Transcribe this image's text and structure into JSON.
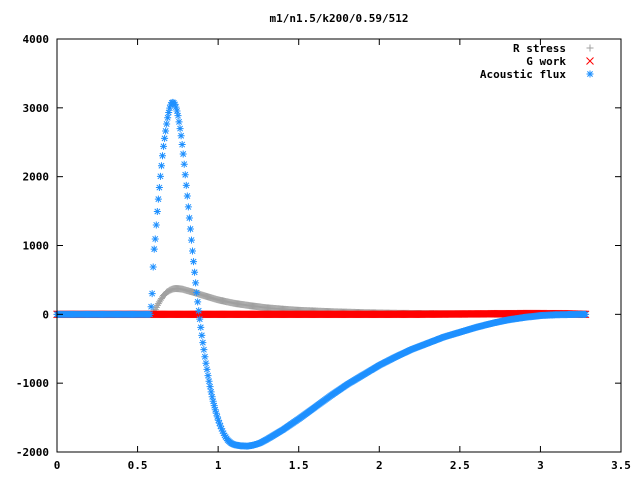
{
  "chart_data": {
    "type": "scatter",
    "title": "m1/n1.5/k200/0.59/512",
    "xlabel": "",
    "ylabel": "",
    "xlim": [
      0,
      3.5
    ],
    "ylim": [
      -2000,
      4000
    ],
    "xticks": [
      0,
      0.5,
      1,
      1.5,
      2,
      2.5,
      3,
      3.5
    ],
    "xtick_labels": [
      "0",
      "0.5",
      "1",
      "1.5",
      "2",
      "2.5",
      "3",
      "3.5"
    ],
    "yticks": [
      -2000,
      -1000,
      0,
      1000,
      2000,
      3000,
      4000
    ],
    "ytick_labels": [
      "-2000",
      "-1000",
      "0",
      "1000",
      "2000",
      "3000",
      "4000"
    ],
    "grid": false,
    "legend_position": "top-right",
    "x_range_points": [
      0,
      3.28
    ],
    "series": [
      {
        "name": "R stress",
        "color": "#a0a0a0",
        "marker": "plus",
        "points": [
          [
            0.0,
            0
          ],
          [
            0.59,
            0
          ],
          [
            0.6,
            20
          ],
          [
            0.62,
            120
          ],
          [
            0.64,
            200
          ],
          [
            0.66,
            270
          ],
          [
            0.68,
            320
          ],
          [
            0.7,
            350
          ],
          [
            0.72,
            370
          ],
          [
            0.74,
            375
          ],
          [
            0.76,
            372
          ],
          [
            0.78,
            365
          ],
          [
            0.8,
            350
          ],
          [
            0.85,
            318
          ],
          [
            0.9,
            280
          ],
          [
            0.95,
            245
          ],
          [
            1.0,
            210
          ],
          [
            1.1,
            160
          ],
          [
            1.2,
            125
          ],
          [
            1.3,
            95
          ],
          [
            1.4,
            75
          ],
          [
            1.5,
            58
          ],
          [
            1.7,
            38
          ],
          [
            1.9,
            24
          ],
          [
            2.1,
            15
          ],
          [
            2.4,
            8
          ],
          [
            2.7,
            4
          ],
          [
            3.0,
            2
          ],
          [
            3.28,
            0
          ]
        ]
      },
      {
        "name": "G work",
        "color": "#ff0000",
        "marker": "cross",
        "points": [
          [
            0.0,
            0
          ],
          [
            0.59,
            0
          ],
          [
            0.6,
            0
          ],
          [
            1.0,
            0
          ],
          [
            1.5,
            0
          ],
          [
            2.0,
            0
          ],
          [
            2.3,
            2
          ],
          [
            2.5,
            5
          ],
          [
            2.7,
            8
          ],
          [
            2.9,
            10
          ],
          [
            3.0,
            10
          ],
          [
            3.15,
            8
          ],
          [
            3.28,
            0
          ]
        ]
      },
      {
        "name": "Acoustic flux",
        "color": "#1e90ff",
        "marker": "star",
        "points": [
          [
            0.0,
            0
          ],
          [
            0.55,
            0
          ],
          [
            0.58,
            0
          ],
          [
            0.59,
            270
          ],
          [
            0.6,
            870
          ],
          [
            0.61,
            1100
          ],
          [
            0.62,
            1420
          ],
          [
            0.63,
            1700
          ],
          [
            0.64,
            1960
          ],
          [
            0.65,
            2200
          ],
          [
            0.66,
            2420
          ],
          [
            0.67,
            2600
          ],
          [
            0.68,
            2760
          ],
          [
            0.69,
            2900
          ],
          [
            0.7,
            3000
          ],
          [
            0.71,
            3070
          ],
          [
            0.72,
            3080
          ],
          [
            0.73,
            3060
          ],
          [
            0.74,
            3000
          ],
          [
            0.75,
            2900
          ],
          [
            0.76,
            2760
          ],
          [
            0.77,
            2600
          ],
          [
            0.78,
            2400
          ],
          [
            0.79,
            2170
          ],
          [
            0.8,
            1930
          ],
          [
            0.81,
            1690
          ],
          [
            0.82,
            1440
          ],
          [
            0.83,
            1190
          ],
          [
            0.84,
            940
          ],
          [
            0.85,
            700
          ],
          [
            0.86,
            460
          ],
          [
            0.87,
            240
          ],
          [
            0.88,
            40
          ],
          [
            0.89,
            -150
          ],
          [
            0.9,
            -330
          ],
          [
            0.92,
            -650
          ],
          [
            0.94,
            -930
          ],
          [
            0.96,
            -1170
          ],
          [
            0.98,
            -1370
          ],
          [
            1.0,
            -1530
          ],
          [
            1.02,
            -1660
          ],
          [
            1.04,
            -1760
          ],
          [
            1.06,
            -1830
          ],
          [
            1.08,
            -1870
          ],
          [
            1.1,
            -1895
          ],
          [
            1.14,
            -1910
          ],
          [
            1.18,
            -1915
          ],
          [
            1.22,
            -1900
          ],
          [
            1.26,
            -1870
          ],
          [
            1.3,
            -1820
          ],
          [
            1.4,
            -1680
          ],
          [
            1.5,
            -1520
          ],
          [
            1.6,
            -1350
          ],
          [
            1.7,
            -1180
          ],
          [
            1.8,
            -1020
          ],
          [
            1.9,
            -880
          ],
          [
            2.0,
            -740
          ],
          [
            2.1,
            -620
          ],
          [
            2.2,
            -510
          ],
          [
            2.3,
            -420
          ],
          [
            2.4,
            -330
          ],
          [
            2.5,
            -260
          ],
          [
            2.6,
            -190
          ],
          [
            2.7,
            -130
          ],
          [
            2.8,
            -80
          ],
          [
            2.9,
            -45
          ],
          [
            3.0,
            -18
          ],
          [
            3.1,
            -6
          ],
          [
            3.2,
            -2
          ],
          [
            3.28,
            0
          ]
        ]
      }
    ]
  }
}
